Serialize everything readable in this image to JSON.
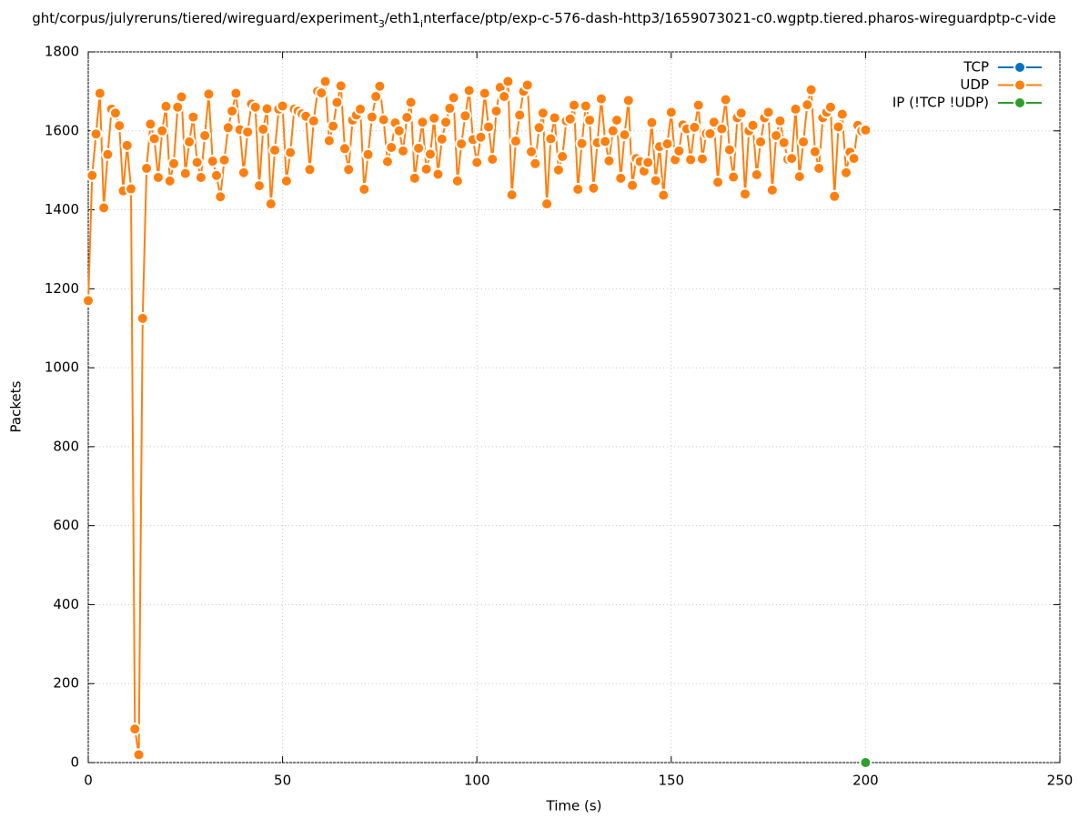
{
  "chart_data": {
    "type": "line",
    "title": [
      "ght/corpus/julyreruns/tiered/wireguard/experiment",
      "3",
      "/eth1",
      "i",
      "nterface/ptp/exp-c-576-dash-http3/1659073021-c0.wgptp.tiered.pharos-wireguardptp-c-vide"
    ],
    "xlabel": "Time (s)",
    "ylabel": "Packets",
    "xlim": [
      0,
      250
    ],
    "xticks": [
      0,
      50,
      100,
      150,
      200,
      250
    ],
    "ylim": [
      0,
      1800
    ],
    "yticks": [
      0,
      200,
      400,
      600,
      800,
      1000,
      1200,
      1400,
      1600,
      1800
    ],
    "grid": true,
    "legend": "top right",
    "series": [
      {
        "name": "TCP",
        "color": "#0072bd",
        "x": [],
        "values": []
      },
      {
        "name": "UDP",
        "color": "#ff7f0e",
        "x": [
          0,
          1,
          2,
          3,
          4,
          5,
          6,
          7,
          8,
          9,
          10,
          11,
          12,
          13,
          14,
          15,
          16,
          17,
          18,
          19,
          20,
          21,
          22,
          23,
          24,
          25,
          26,
          27,
          28,
          29,
          30,
          31,
          32,
          33,
          34,
          35,
          36,
          37,
          38,
          39,
          40,
          41,
          42,
          43,
          44,
          45,
          46,
          47,
          48,
          49,
          50,
          51,
          52,
          53,
          54,
          55,
          56,
          57,
          58,
          59,
          60,
          61,
          62,
          63,
          64,
          65,
          66,
          67,
          68,
          69,
          70,
          71,
          72,
          73,
          74,
          75,
          76,
          77,
          78,
          79,
          80,
          81,
          82,
          83,
          84,
          85,
          86,
          87,
          88,
          89,
          90,
          91,
          92,
          93,
          94,
          95,
          96,
          97,
          98,
          99,
          100,
          101,
          102,
          103,
          104,
          105,
          106,
          107,
          108,
          109,
          110,
          111,
          112,
          113,
          114,
          115,
          116,
          117,
          118,
          119,
          120,
          121,
          122,
          123,
          124,
          125,
          126,
          127,
          128,
          129,
          130,
          131,
          132,
          133,
          134,
          135,
          136,
          137,
          138,
          139,
          140,
          141,
          142,
          143,
          144,
          145,
          146,
          147,
          148,
          149,
          150,
          151,
          152,
          153,
          154,
          155,
          156,
          157,
          158,
          159,
          160,
          161,
          162,
          163,
          164,
          165,
          166,
          167,
          168,
          169,
          170,
          171,
          172,
          173,
          174,
          175,
          176,
          177,
          178,
          179,
          180,
          181,
          182,
          183,
          184,
          185,
          186,
          187,
          188,
          189,
          190,
          191,
          192,
          193,
          194,
          195,
          196,
          197,
          198,
          199,
          200
        ],
        "values": [
          1170,
          1487,
          1592,
          1695,
          1405,
          1540,
          1655,
          1645,
          1613,
          1448,
          1563,
          1453,
          85,
          20,
          1125,
          1505,
          1617,
          1580,
          1482,
          1600,
          1662,
          1473,
          1517,
          1660,
          1686,
          1492,
          1572,
          1635,
          1520,
          1482,
          1588,
          1693,
          1523,
          1487,
          1433,
          1526,
          1608,
          1650,
          1695,
          1603,
          1494,
          1597,
          1668,
          1660,
          1461,
          1604,
          1656,
          1415,
          1551,
          1655,
          1663,
          1473,
          1545,
          1655,
          1650,
          1643,
          1637,
          1502,
          1625,
          1700,
          1696,
          1725,
          1575,
          1612,
          1672,
          1714,
          1555,
          1502,
          1627,
          1640,
          1655,
          1452,
          1540,
          1635,
          1687,
          1713,
          1628,
          1522,
          1558,
          1620,
          1600,
          1549,
          1634,
          1672,
          1480,
          1556,
          1622,
          1503,
          1541,
          1632,
          1490,
          1579,
          1622,
          1657,
          1684,
          1473,
          1567,
          1638,
          1702,
          1578,
          1520,
          1584,
          1695,
          1610,
          1528,
          1650,
          1710,
          1687,
          1725,
          1438,
          1574,
          1640,
          1700,
          1716,
          1547,
          1517,
          1608,
          1645,
          1415,
          1580,
          1633,
          1501,
          1535,
          1625,
          1630,
          1665,
          1452,
          1568,
          1663,
          1627,
          1455,
          1570,
          1681,
          1573,
          1524,
          1600,
          1627,
          1480,
          1590,
          1677,
          1462,
          1530,
          1522,
          1498,
          1520,
          1621,
          1474,
          1560,
          1437,
          1567,
          1647,
          1527,
          1549,
          1615,
          1605,
          1527,
          1609,
          1665,
          1529,
          1593,
          1593,
          1622,
          1470,
          1605,
          1679,
          1552,
          1483,
          1633,
          1645,
          1440,
          1600,
          1614,
          1489,
          1572,
          1633,
          1647,
          1450,
          1588,
          1625,
          1570,
          1528,
          1530,
          1655,
          1484,
          1572,
          1666,
          1704,
          1547,
          1505,
          1633,
          1647,
          1660,
          1434,
          1610,
          1642,
          1494,
          1546,
          1530,
          1614,
          1600,
          1602
        ]
      },
      {
        "name": "IP (!TCP  !UDP)",
        "color": "#2ca02c",
        "x": [
          200
        ],
        "values": [
          0
        ]
      }
    ]
  }
}
